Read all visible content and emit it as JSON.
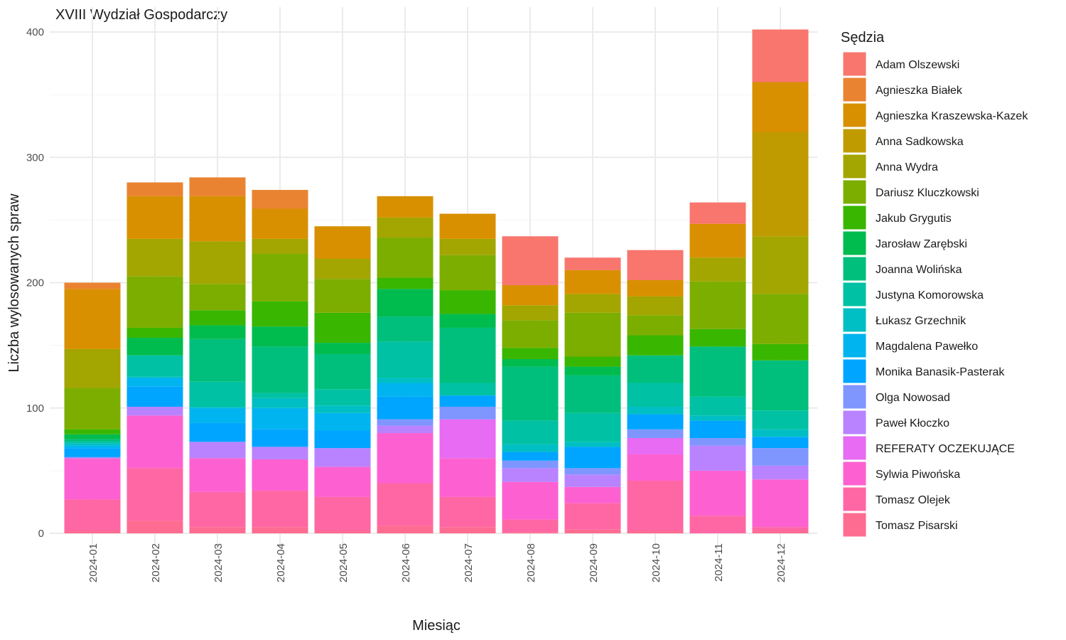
{
  "chart_data": {
    "type": "bar",
    "stacked": true,
    "title": "XVIII Wydział Gospodarczy",
    "xlabel": "Miesiąc",
    "ylabel": "Liczba wylosowanych spraw",
    "ylim": [
      0,
      400
    ],
    "yticks": [
      0,
      100,
      200,
      300,
      400
    ],
    "grid": true,
    "legend_title": "Sędzia",
    "legend_position": "right",
    "categories": [
      "2024-01",
      "2024-02",
      "2024-03",
      "2024-04",
      "2024-05",
      "2024-06",
      "2024-07",
      "2024-08",
      "2024-09",
      "2024-10",
      "2024-11",
      "2024-12"
    ],
    "series": [
      {
        "name": "Adam Olszewski",
        "color": "#F8766D",
        "values": [
          0,
          0,
          0,
          0,
          0,
          0,
          0,
          39,
          10,
          24,
          17,
          42
        ]
      },
      {
        "name": "Agnieszka Białek",
        "color": "#EA8331",
        "values": [
          5,
          11,
          15,
          15,
          0,
          0,
          0,
          0,
          0,
          0,
          0,
          0
        ]
      },
      {
        "name": "Agnieszka Kraszewska-Kazek",
        "color": "#D89000",
        "values": [
          48,
          34,
          36,
          24,
          26,
          17,
          20,
          16,
          19,
          13,
          27,
          40
        ]
      },
      {
        "name": "Anna Sadkowska",
        "color": "#C09B00",
        "values": [
          0,
          0,
          0,
          0,
          0,
          0,
          0,
          0,
          0,
          0,
          0,
          83
        ]
      },
      {
        "name": "Anna Wydra",
        "color": "#A3A500",
        "values": [
          31,
          30,
          34,
          12,
          16,
          16,
          13,
          12,
          15,
          15,
          19,
          46
        ]
      },
      {
        "name": "Dariusz Kluczkowski",
        "color": "#7CAE00",
        "values": [
          33,
          41,
          21,
          38,
          27,
          32,
          28,
          22,
          35,
          16,
          38,
          40
        ]
      },
      {
        "name": "Jakub Grygutis",
        "color": "#39B600",
        "values": [
          4,
          8,
          12,
          20,
          24,
          9,
          19,
          9,
          8,
          16,
          14,
          13
        ]
      },
      {
        "name": "Jarosław Zarębski",
        "color": "#00BB4E",
        "values": [
          4,
          14,
          11,
          16,
          9,
          22,
          11,
          6,
          7,
          0,
          0,
          0
        ]
      },
      {
        "name": "Joanna Wolińska",
        "color": "#00BF7D",
        "values": [
          2,
          0,
          34,
          37,
          28,
          20,
          44,
          43,
          30,
          22,
          40,
          40
        ]
      },
      {
        "name": "Justyna Komorowska",
        "color": "#00C1A3",
        "values": [
          1,
          17,
          20,
          4,
          13,
          29,
          10,
          19,
          23,
          19,
          15,
          15
        ]
      },
      {
        "name": "Łukasz Grzechnik",
        "color": "#00BFC4",
        "values": [
          2,
          1,
          1,
          8,
          6,
          4,
          0,
          6,
          4,
          6,
          4,
          6
        ]
      },
      {
        "name": "Magdalena Pawełko",
        "color": "#00B4EF",
        "values": [
          2,
          7,
          12,
          17,
          14,
          11,
          0,
          0,
          0,
          0,
          0,
          0
        ]
      },
      {
        "name": "Monika Banasik-Pasterak",
        "color": "#00A5FF",
        "values": [
          7,
          16,
          15,
          14,
          14,
          18,
          9,
          7,
          17,
          12,
          14,
          9
        ]
      },
      {
        "name": "Olga Nowosad",
        "color": "#7F96FF",
        "values": [
          1,
          0,
          0,
          0,
          0,
          5,
          10,
          6,
          5,
          7,
          6,
          14
        ]
      },
      {
        "name": "Paweł Kłoczko",
        "color": "#B983FF",
        "values": [
          0,
          7,
          13,
          10,
          15,
          6,
          0,
          11,
          10,
          0,
          20,
          11
        ]
      },
      {
        "name": "REFERATY OCZEKUJĄCE",
        "color": "#E76BF3",
        "values": [
          0,
          0,
          0,
          0,
          0,
          0,
          31,
          0,
          0,
          13,
          0,
          0
        ]
      },
      {
        "name": "Sylwia Piwońska",
        "color": "#FD61D1",
        "values": [
          33,
          42,
          27,
          25,
          24,
          40,
          31,
          30,
          13,
          21,
          36,
          38
        ]
      },
      {
        "name": "Tomasz Olejek",
        "color": "#FF67A4",
        "values": [
          25,
          42,
          28,
          29,
          27,
          34,
          24,
          10,
          21,
          40,
          14,
          3
        ]
      },
      {
        "name": "Tomasz Pisarski",
        "color": "#FF6C91",
        "values": [
          2,
          10,
          5,
          5,
          2,
          6,
          5,
          1,
          3,
          2,
          0,
          2
        ]
      }
    ]
  }
}
